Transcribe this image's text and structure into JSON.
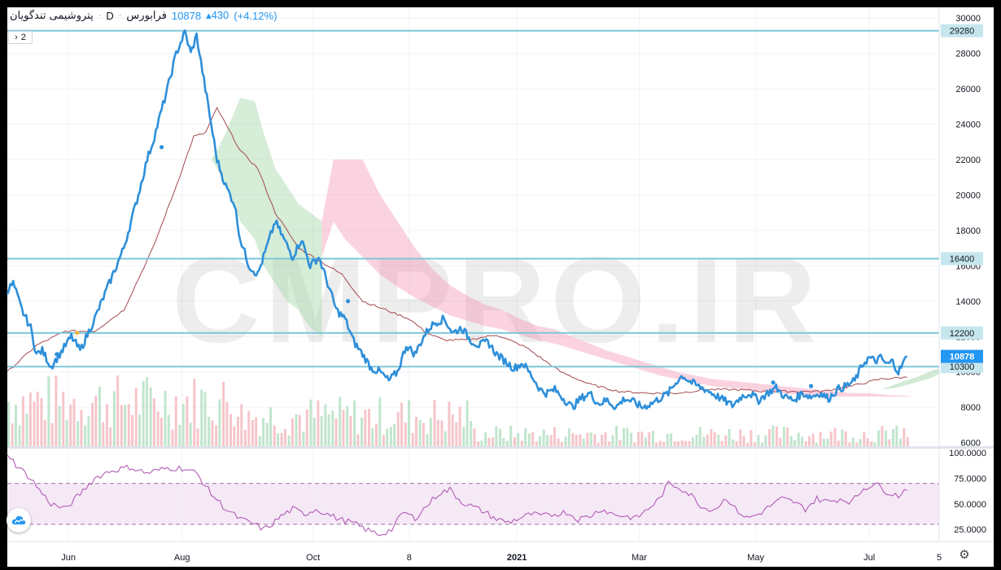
{
  "header": {
    "symbol": "پتروشیمی تندگویان",
    "interval": "D",
    "exchange": "فرابورس",
    "last": "10878",
    "change": "▴430",
    "change_pct": "(+4.12%)"
  },
  "indicator_toggle": {
    "count": "2",
    "arrow": "›"
  },
  "watermark": "CMPRO.IR",
  "colors": {
    "price_line": "#2e8fd9",
    "level_line": "#7ec8d9",
    "kijun": "#a3484e",
    "cloud_bull": "#a5d6a7",
    "cloud_bear": "#f48fb1",
    "rsi": "#b25bb5",
    "rsi_band": "#f3e5f5",
    "vol_up": "#b2dfc1",
    "vol_down": "#f4b6bd"
  },
  "icons": {
    "settings": "gear-icon",
    "drawings": "cloud-icon"
  },
  "chart_data": {
    "type": "line",
    "price_axis": {
      "ticks": [
        6000,
        8000,
        10000,
        12000,
        14000,
        16000,
        18000,
        20000,
        22000,
        24000,
        26000,
        28000,
        30000
      ],
      "range": [
        5800,
        30600
      ]
    },
    "time_axis": {
      "labels": [
        "Jun",
        "Aug",
        "Oct",
        "8",
        "2021",
        "Mar",
        "May",
        "Jul",
        "5"
      ],
      "label_positions": [
        21,
        60,
        105,
        138,
        175,
        217,
        257,
        296,
        320
      ]
    },
    "levels": [
      {
        "value": 29280,
        "label": "29280"
      },
      {
        "value": 16400,
        "label": "16400"
      },
      {
        "value": 12200,
        "label": "12200"
      },
      {
        "value": 10300,
        "label": "10300"
      }
    ],
    "last_price": {
      "value": 10878,
      "label": "10878"
    },
    "price_series": {
      "name": "close",
      "anchors": [
        [
          0,
          14600
        ],
        [
          2,
          15000
        ],
        [
          5,
          13500
        ],
        [
          8,
          12500
        ],
        [
          10,
          11000
        ],
        [
          12,
          11200
        ],
        [
          15,
          10300
        ],
        [
          18,
          11000
        ],
        [
          22,
          12000
        ],
        [
          25,
          11200
        ],
        [
          30,
          13000
        ],
        [
          35,
          15000
        ],
        [
          40,
          17000
        ],
        [
          45,
          20000
        ],
        [
          48,
          22000
        ],
        [
          50,
          23000
        ],
        [
          55,
          26000
        ],
        [
          58,
          28000
        ],
        [
          61,
          29200
        ],
        [
          63,
          28000
        ],
        [
          65,
          29000
        ],
        [
          68,
          26000
        ],
        [
          70,
          24000
        ],
        [
          72,
          22000
        ],
        [
          75,
          20500
        ],
        [
          78,
          19500
        ],
        [
          80,
          17500
        ],
        [
          83,
          16000
        ],
        [
          86,
          15500
        ],
        [
          89,
          17000
        ],
        [
          92,
          18500
        ],
        [
          95,
          17500
        ],
        [
          98,
          16500
        ],
        [
          101,
          17500
        ],
        [
          104,
          16000
        ],
        [
          107,
          16500
        ],
        [
          110,
          15000
        ],
        [
          113,
          13500
        ],
        [
          116,
          13000
        ],
        [
          119,
          11700
        ],
        [
          122,
          11000
        ],
        [
          125,
          10200
        ],
        [
          128,
          10000
        ],
        [
          131,
          9500
        ],
        [
          134,
          10000
        ],
        [
          137,
          11500
        ],
        [
          140,
          11000
        ],
        [
          143,
          12000
        ],
        [
          145,
          12500
        ],
        [
          147,
          12800
        ],
        [
          150,
          13000
        ],
        [
          153,
          12200
        ],
        [
          156,
          12500
        ],
        [
          159,
          11800
        ],
        [
          162,
          11500
        ],
        [
          165,
          11700
        ],
        [
          168,
          11000
        ],
        [
          171,
          10600
        ],
        [
          174,
          10200
        ],
        [
          177,
          10500
        ],
        [
          180,
          9800
        ],
        [
          183,
          9000
        ],
        [
          185,
          8800
        ],
        [
          188,
          9000
        ],
        [
          191,
          8500
        ],
        [
          194,
          8000
        ],
        [
          197,
          8500
        ],
        [
          200,
          8800
        ],
        [
          203,
          8200
        ],
        [
          206,
          8400
        ],
        [
          209,
          8000
        ],
        [
          212,
          8500
        ],
        [
          215,
          8300
        ],
        [
          218,
          8000
        ],
        [
          221,
          8200
        ],
        [
          224,
          8500
        ],
        [
          227,
          8800
        ],
        [
          230,
          9500
        ],
        [
          232,
          9800
        ],
        [
          234,
          9500
        ],
        [
          237,
          9200
        ],
        [
          240,
          9000
        ],
        [
          243,
          8700
        ],
        [
          246,
          8400
        ],
        [
          249,
          8100
        ],
        [
          252,
          8600
        ],
        [
          255,
          8800
        ],
        [
          258,
          8400
        ],
        [
          261,
          8800
        ],
        [
          264,
          9100
        ],
        [
          267,
          8600
        ],
        [
          270,
          8400
        ],
        [
          273,
          8800
        ],
        [
          276,
          8600
        ],
        [
          279,
          8800
        ],
        [
          282,
          8500
        ],
        [
          285,
          9000
        ],
        [
          288,
          9200
        ],
        [
          291,
          9500
        ],
        [
          294,
          10500
        ],
        [
          296,
          10800
        ],
        [
          298,
          10600
        ],
        [
          300,
          10800
        ],
        [
          302,
          10400
        ],
        [
          304,
          10600
        ],
        [
          306,
          10000
        ],
        [
          309,
          10878
        ]
      ]
    },
    "kijun_series": {
      "name": "baseline",
      "anchors": [
        [
          0,
          10000
        ],
        [
          10,
          11500
        ],
        [
          20,
          12300
        ],
        [
          30,
          12300
        ],
        [
          40,
          13500
        ],
        [
          50,
          17000
        ],
        [
          58,
          20500
        ],
        [
          64,
          23300
        ],
        [
          68,
          23500
        ],
        [
          72,
          24900
        ],
        [
          80,
          22500
        ],
        [
          86,
          21500
        ],
        [
          92,
          19000
        ],
        [
          100,
          17000
        ],
        [
          108,
          16200
        ],
        [
          115,
          15500
        ],
        [
          122,
          14000
        ],
        [
          130,
          13500
        ],
        [
          138,
          13000
        ],
        [
          144,
          12200
        ],
        [
          150,
          11800
        ],
        [
          158,
          11800
        ],
        [
          168,
          12100
        ],
        [
          178,
          11400
        ],
        [
          190,
          10000
        ],
        [
          200,
          9300
        ],
        [
          210,
          8900
        ],
        [
          220,
          8800
        ],
        [
          230,
          8800
        ],
        [
          240,
          9000
        ],
        [
          250,
          9000
        ],
        [
          260,
          8900
        ],
        [
          270,
          8900
        ],
        [
          280,
          8900
        ],
        [
          290,
          9200
        ],
        [
          300,
          9600
        ],
        [
          309,
          9700
        ]
      ]
    },
    "cloud": {
      "bull": [
        [
          70,
          22000,
          22000
        ],
        [
          72,
          22500,
          21500
        ],
        [
          75,
          23500,
          20500
        ],
        [
          80,
          25500,
          18500
        ],
        [
          85,
          25300,
          17500
        ],
        [
          88,
          23500,
          16000
        ],
        [
          92,
          21500,
          15000
        ],
        [
          96,
          20500,
          14000
        ],
        [
          100,
          19500,
          13500
        ],
        [
          104,
          19000,
          12500
        ],
        [
          108,
          18500,
          12000
        ]
      ],
      "bear": [
        [
          108,
          18500,
          16500
        ],
        [
          112,
          22000,
          18500
        ],
        [
          116,
          22000,
          17500
        ],
        [
          122,
          22000,
          16500
        ],
        [
          128,
          20000,
          15500
        ],
        [
          134,
          18500,
          14800
        ],
        [
          140,
          17000,
          14200
        ],
        [
          146,
          15800,
          13700
        ],
        [
          152,
          14900,
          13200
        ],
        [
          158,
          14300,
          12900
        ],
        [
          164,
          13800,
          12600
        ],
        [
          170,
          13500,
          12400
        ],
        [
          176,
          13000,
          12100
        ],
        [
          182,
          12600,
          11800
        ],
        [
          188,
          12400,
          11600
        ],
        [
          194,
          12000,
          11300
        ],
        [
          200,
          11600,
          11000
        ],
        [
          206,
          11200,
          10700
        ],
        [
          212,
          10900,
          10400
        ],
        [
          218,
          10600,
          10100
        ],
        [
          224,
          10300,
          9800
        ],
        [
          230,
          10000,
          9600
        ],
        [
          236,
          9800,
          9400
        ],
        [
          242,
          9600,
          9200
        ],
        [
          248,
          9500,
          9100
        ],
        [
          254,
          9400,
          9000
        ],
        [
          260,
          9300,
          8900
        ],
        [
          266,
          9200,
          8800
        ],
        [
          272,
          9100,
          8700
        ],
        [
          278,
          9000,
          8700
        ],
        [
          284,
          8900,
          8600
        ],
        [
          290,
          8800,
          8600
        ],
        [
          296,
          8800,
          8600
        ],
        [
          302,
          8700,
          8600
        ],
        [
          308,
          8650,
          8600
        ],
        [
          312,
          8600,
          8600
        ]
      ]
    },
    "rsi": {
      "axis_labels": [
        "100.0000",
        "75.0000",
        "50.0000",
        "25.0000"
      ],
      "band": [
        30,
        70
      ],
      "range": [
        14,
        104
      ],
      "anchors": [
        [
          0,
          100
        ],
        [
          3,
          88
        ],
        [
          8,
          75
        ],
        [
          12,
          60
        ],
        [
          15,
          50
        ],
        [
          20,
          45
        ],
        [
          25,
          60
        ],
        [
          30,
          75
        ],
        [
          35,
          82
        ],
        [
          42,
          86
        ],
        [
          48,
          80
        ],
        [
          55,
          85
        ],
        [
          60,
          85
        ],
        [
          65,
          80
        ],
        [
          70,
          60
        ],
        [
          75,
          45
        ],
        [
          80,
          35
        ],
        [
          85,
          30
        ],
        [
          88,
          25
        ],
        [
          90,
          28
        ],
        [
          94,
          38
        ],
        [
          98,
          45
        ],
        [
          102,
          40
        ],
        [
          106,
          45
        ],
        [
          110,
          40
        ],
        [
          114,
          35
        ],
        [
          118,
          32
        ],
        [
          124,
          24
        ],
        [
          128,
          20
        ],
        [
          132,
          25
        ],
        [
          136,
          42
        ],
        [
          140,
          36
        ],
        [
          144,
          48
        ],
        [
          148,
          60
        ],
        [
          152,
          64
        ],
        [
          156,
          52
        ],
        [
          160,
          47
        ],
        [
          164,
          42
        ],
        [
          168,
          35
        ],
        [
          172,
          32
        ],
        [
          176,
          36
        ],
        [
          180,
          40
        ],
        [
          184,
          38
        ],
        [
          188,
          40
        ],
        [
          192,
          42
        ],
        [
          196,
          35
        ],
        [
          200,
          38
        ],
        [
          204,
          45
        ],
        [
          208,
          40
        ],
        [
          212,
          38
        ],
        [
          216,
          36
        ],
        [
          220,
          45
        ],
        [
          224,
          55
        ],
        [
          227,
          70
        ],
        [
          231,
          66
        ],
        [
          235,
          58
        ],
        [
          239,
          46
        ],
        [
          243,
          45
        ],
        [
          247,
          56
        ],
        [
          250,
          45
        ],
        [
          254,
          36
        ],
        [
          258,
          40
        ],
        [
          262,
          48
        ],
        [
          266,
          55
        ],
        [
          270,
          52
        ],
        [
          274,
          45
        ],
        [
          278,
          55
        ],
        [
          282,
          52
        ],
        [
          286,
          55
        ],
        [
          290,
          52
        ],
        [
          294,
          65
        ],
        [
          298,
          70
        ],
        [
          302,
          62
        ],
        [
          306,
          58
        ],
        [
          309,
          66
        ]
      ]
    },
    "volume_note": "volume histogram in background, ~250 bars"
  }
}
